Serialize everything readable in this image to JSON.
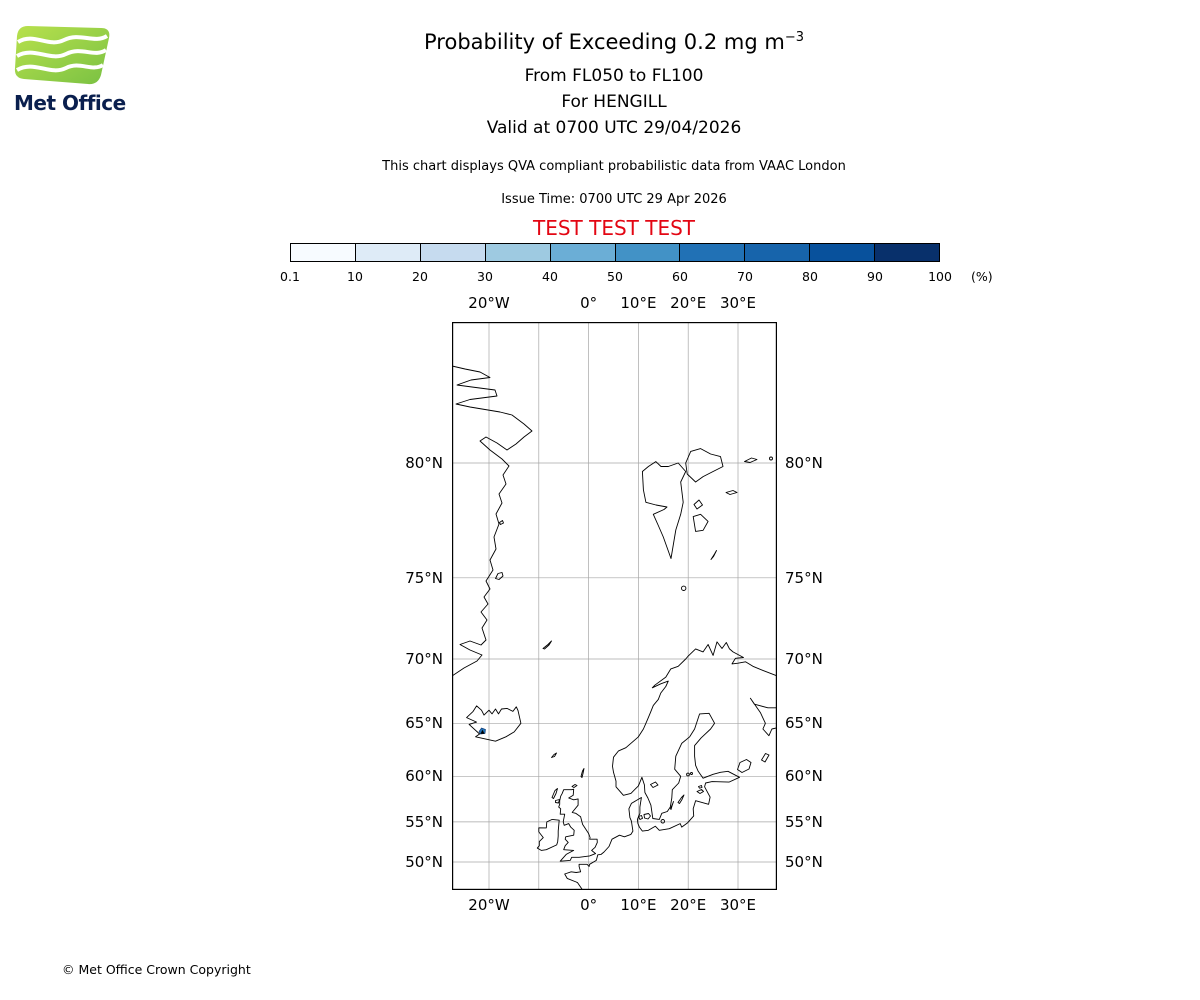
{
  "logo": {
    "text": "Met Office"
  },
  "header": {
    "title_main": "Probability of Exceeding 0.2 mg m",
    "title_sup": "−3",
    "subtitle_fl": "From FL050 to FL100",
    "subtitle_for": "For HENGILL",
    "subtitle_valid": "Valid at 0700 UTC 29/04/2026",
    "description": "This chart displays QVA compliant probabilistic data from VAAC London",
    "issue_time": "Issue Time: 0700 UTC 29 Apr 2026",
    "test_banner": "TEST TEST TEST",
    "test_color": "#e30613"
  },
  "colorbar": {
    "ticks": [
      "0.1",
      "10",
      "20",
      "30",
      "40",
      "50",
      "60",
      "70",
      "80",
      "90",
      "100"
    ],
    "unit_label": "(%)",
    "colors": [
      "#f7fbff",
      "#deebf7",
      "#c6dbef",
      "#9ecae1",
      "#6baed6",
      "#4292c6",
      "#2171b5",
      "#1764ab",
      "#08519c",
      "#08306b"
    ]
  },
  "map": {
    "lat_labels": [
      "80°N",
      "75°N",
      "70°N",
      "65°N",
      "60°N",
      "55°N",
      "50°N"
    ],
    "lon_labels": [
      "20°W",
      "0°",
      "10°E",
      "20°E",
      "30°E"
    ],
    "marker": {
      "volcano": "HENGILL",
      "contour_color": "#2171b5"
    }
  },
  "footer": {
    "copyright": "© Met Office Crown Copyright"
  }
}
